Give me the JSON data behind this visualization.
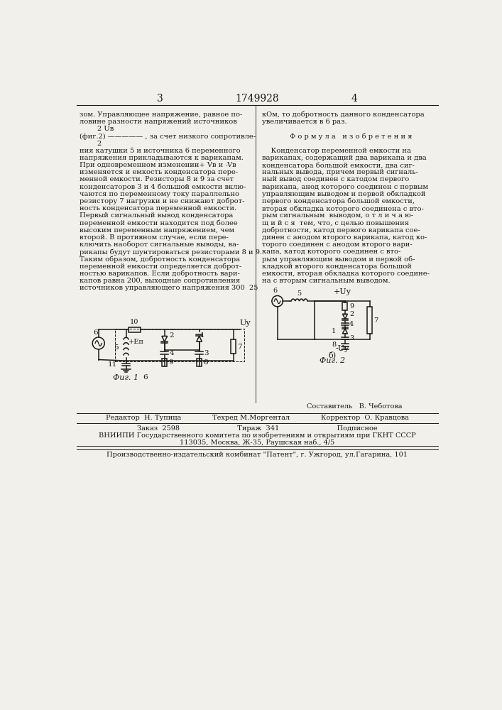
{
  "page_number_left": "3",
  "patent_number": "1749928",
  "page_number_right": "4",
  "background_color": "#f2f0eb",
  "text_color": "#1a1a1a",
  "left_column_lines": [
    "зом. Управляющее напряжение, равное по-",
    "ловине разности напряжений источников",
    "        2 Uв",
    "(фиг.2) ————— , за счет низкого сопротивле-",
    "        2",
    "ния катушки 5 и источника 6 переменного",
    "напряжения прикладываются к варикапам.",
    "При одновременном изменении+ Vв и -Vв",
    "изменяется и емкость конденсатора пере-",
    "менной емкости. Резисторы 8 и 9 за счет",
    "конденсаторов 3 и 4 большой емкости вклю-",
    "чаются по переменному току параллельно",
    "резистору 7 нагрузки и не снижают доброт-",
    "ность конденсатора переменной емкости.",
    "Первый сигнальный вывод конденсатора",
    "переменной емкости находится под более",
    "высоким переменным напряжением, чем",
    "второй. В противном случае, если пере-",
    "ключить наоборот сигнальные выводы, ва-",
    "рикапы будут шунтироваться резисторами 8 и 9.",
    "Таким образом, добротность конденсатора",
    "переменной емкости определяется доброт-",
    "ностью варикапов. Если добротность вари-",
    "капов равна 200, выходные сопротивления",
    "источников управляющего напряжения 300  25"
  ],
  "right_column_lines": [
    "кОм, то добротность данного конденсатора",
    "увеличивается в 6 раз.",
    "",
    "Ф о р м у л а   и з о б р е т е н и я",
    "",
    "    Конденсатор переменной емкости на",
    "варикапах, содержащий два варикапа и два",
    "конденсатора большой емкости, два сиг-",
    "нальных вывода, причем первый сигналь-",
    "ный вывод соединен с катодом первого",
    "варикапа, анод которого соединен с первым",
    "управляющим выводом и первой обкладкой",
    "первого конденсатора большой емкости,",
    "вторая обкладка которого соединена с вто-",
    "рым сигнальным  выводом, о т л и ч а ю-",
    "щ и й с я  тем, что, с целью повышения",
    "добротности, катод первого варикапа сое-",
    "динен с анодом второго варикапа, катод ко-",
    "торого соединен с анодом второго вари-",
    "капа, катод которого соединен с вто-",
    "рым управляющим выводом и первой об-",
    "кладкой второго конденсатора большой",
    "емкости, вторая обкладка которого соедине-",
    "на с вторым сигнальным выводом."
  ],
  "editor_line": "Редактор  Н. Тупица              Техред М.Моргентал              Корректор  О. Кравцова",
  "sestavitel_line": "Составитель   В. Чеботова",
  "order_line": "Заказ  2598                          Тираж  341                          Подписное",
  "vniipи_line": "ВНИИПИ Государственного комитета по изобретениям и открытиям при ГКНТ СССР",
  "address_line": "113035, Москва, Ж-35, Раушская наб., 4/5",
  "publisher_line": "Производственно-издательский комбинат \"Патент\", г. Ужгород, ул.Гагарина, 101",
  "fig1_label": "Фиг. 1",
  "fig2_label": "Фиг. 2",
  "diagram_b_label": "б)"
}
